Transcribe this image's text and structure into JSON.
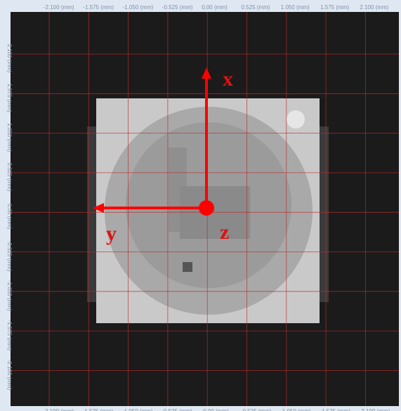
{
  "top_labels": [
    "-2.100 (mm)",
    "-1.575 (mm)",
    "-1.050 (mm)",
    "-0.525 (mm)",
    "0.00 (mm)",
    "0.525 (mm)",
    "1.050 (mm)",
    "1.575 (mm)",
    "2.100 (mm)"
  ],
  "bottom_labels": [
    "2.100 (mm)",
    "1.575 (mm)",
    "1.050 (mm)",
    "0.525 (mm)",
    "0.00 (mm)",
    "0.525 (mm)",
    "1.050 (mm)",
    "1.575 (mm)",
    "2.100 (mm)"
  ],
  "left_labels": [
    "2.100 (mm)",
    "1.575 (mm)",
    "1.050 (mm)",
    "0.525 (mm)",
    "0.00 (mm)",
    "-0.525 (mm)",
    "-1.050 (mm)",
    "-1.575 (mm)",
    "-2.100 (mm)"
  ],
  "axes": {
    "x": "x",
    "y": "y",
    "z": "z"
  }
}
